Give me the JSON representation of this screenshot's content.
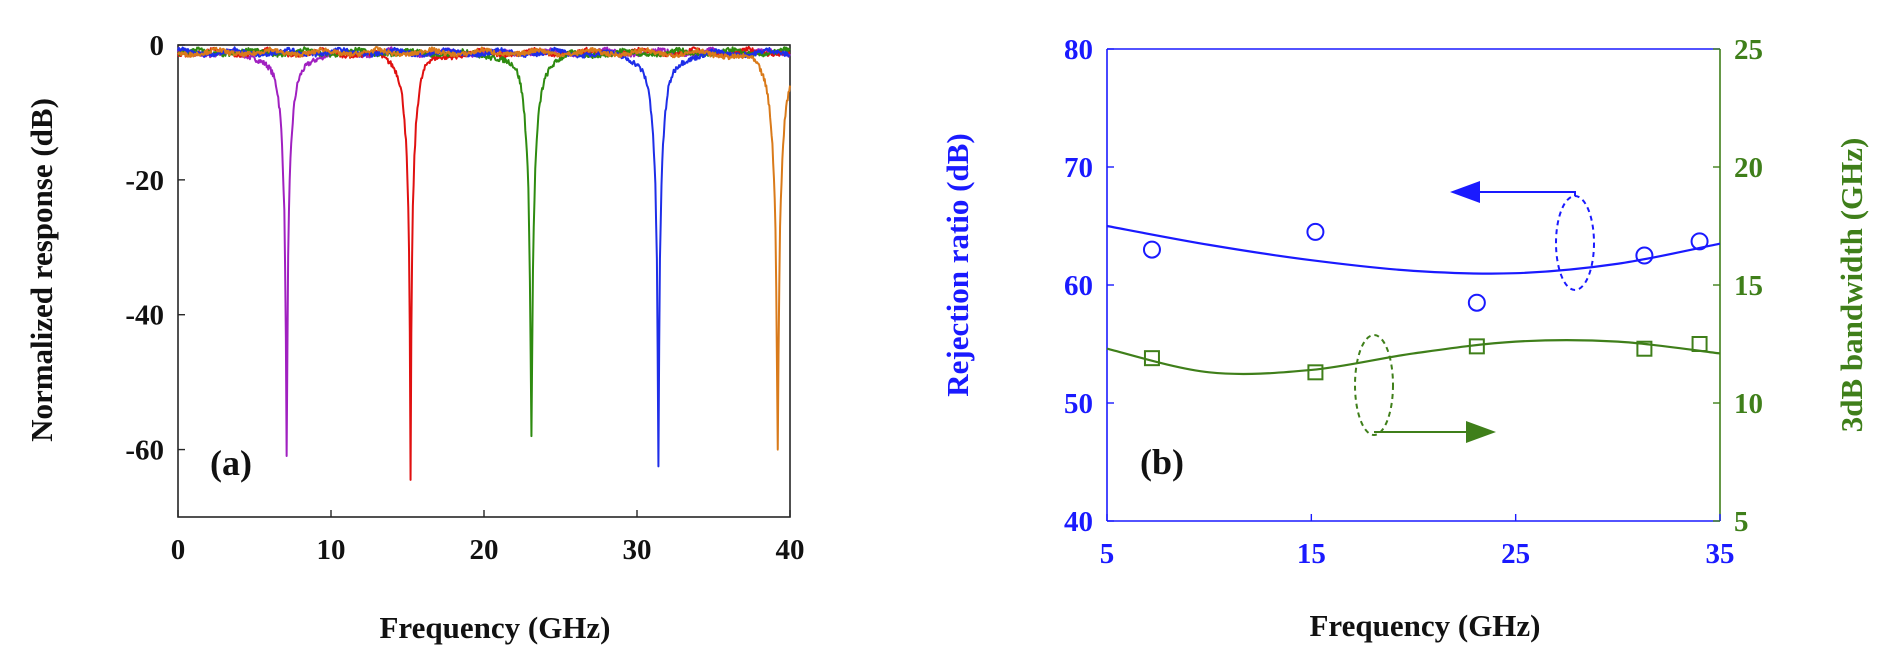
{
  "chart_data": [
    {
      "panel": "(a)",
      "type": "line",
      "xlabel": "Frequency (GHz)",
      "ylabel": "Normalized response (dB)",
      "xlim": [
        0,
        40
      ],
      "ylim": [
        -70,
        0
      ],
      "xticks": [
        "0",
        "10",
        "20",
        "30",
        "40"
      ],
      "yticks": [
        "0",
        "-20",
        "-40",
        "-60"
      ],
      "series": [
        {
          "name": "notch 7 GHz",
          "color": "#a020c0",
          "center": 7.1,
          "depth": -62,
          "width": 3.2
        },
        {
          "name": "notch 15 GHz",
          "color": "#e01010",
          "center": 15.2,
          "depth": -64.5,
          "width": 3.0
        },
        {
          "name": "notch 23 GHz",
          "color": "#2e8b10",
          "center": 23.1,
          "depth": -58,
          "width": 3.4
        },
        {
          "name": "notch 31 GHz",
          "color": "#1e2ee8",
          "center": 31.4,
          "depth": -62.5,
          "width": 3.3
        },
        {
          "name": "notch 39 GHz",
          "color": "#d97a1a",
          "center": 39.2,
          "depth": -60,
          "width": 3.6
        }
      ]
    },
    {
      "panel": "(b)",
      "type": "scatter",
      "xlabel": "Frequency (GHz)",
      "xlim": [
        5,
        35
      ],
      "xticks": [
        "5",
        "15",
        "25",
        "35"
      ],
      "y_left": {
        "label": "Rejection ratio (dB)",
        "lim": [
          40,
          80
        ],
        "ticks": [
          "40",
          "50",
          "60",
          "70",
          "80"
        ],
        "color": "#1a1aff"
      },
      "y_right": {
        "label": "3dB bandwidth (GHz)",
        "lim": [
          5,
          25
        ],
        "ticks": [
          "5",
          "10",
          "15",
          "20",
          "25"
        ],
        "color": "#3f7f1a"
      },
      "series": [
        {
          "name": "Rejection ratio",
          "axis": "left",
          "marker": "circle",
          "color": "#1a1aff",
          "x": [
            7.2,
            15.2,
            23.1,
            31.3,
            34.0
          ],
          "y": [
            63.0,
            64.5,
            58.5,
            62.5,
            63.7
          ],
          "fit_x": [
            5,
            10,
            15,
            20,
            25,
            30,
            35
          ],
          "fit_y": [
            65.0,
            63.4,
            62.1,
            61.2,
            61.0,
            61.8,
            63.5
          ]
        },
        {
          "name": "3dB bandwidth",
          "axis": "right",
          "marker": "square",
          "color": "#3f7f1a",
          "x": [
            7.2,
            15.2,
            23.1,
            31.3,
            34.0
          ],
          "y": [
            11.9,
            11.3,
            12.4,
            12.3,
            12.5
          ],
          "fit_x": [
            5,
            10,
            15,
            20,
            25,
            30,
            35
          ],
          "fit_y": [
            12.3,
            11.3,
            11.4,
            12.1,
            12.6,
            12.6,
            12.1
          ]
        }
      ]
    }
  ]
}
